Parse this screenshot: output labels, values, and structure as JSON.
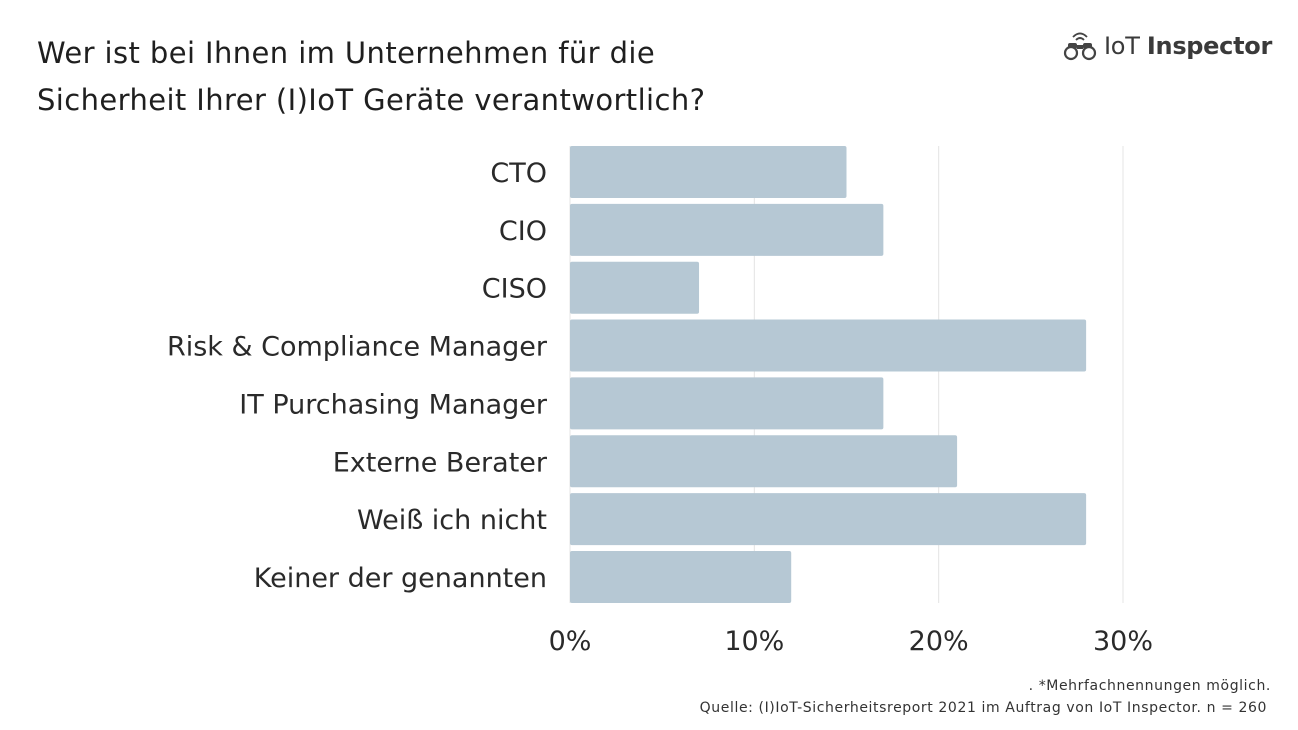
{
  "title_lines": [
    "Wer ist bei Ihnen im Unternehmen für die",
    "Sicherheit Ihrer (I)IoT Geräte verantwortlich?"
  ],
  "logo": {
    "icon": "binoculars-icon",
    "text_light": "IoT",
    "text_bold": "Inspector"
  },
  "colors": {
    "bar": "#b6c8d4",
    "grid": "#e4e4e4",
    "text": "#222222"
  },
  "chart_data": {
    "type": "bar",
    "orientation": "horizontal",
    "title": "Wer ist bei Ihnen im Unternehmen für die Sicherheit Ihrer (I)IoT Geräte verantwortlich?",
    "categories": [
      "CTO",
      "CIO",
      "CISO",
      "Risk & Compliance Manager",
      "IT Purchasing Manager",
      "Externe Berater",
      "Weiß ich nicht",
      "Keiner der genannten"
    ],
    "values": [
      15,
      17,
      7,
      28,
      17,
      21,
      28,
      12
    ],
    "unit": "%",
    "xlim": [
      0,
      39
    ],
    "xticks": [
      0,
      10,
      20,
      30
    ],
    "xtick_labels": [
      "0%",
      "10%",
      "20%",
      "30%"
    ],
    "xlabel": "",
    "ylabel": "",
    "grid": true,
    "legend": "none"
  },
  "footer": {
    "note": ". *Mehrfachnennungen möglich.",
    "source": "Quelle: (I)IoT-Sicherheitsreport 2021 im Auftrag von IoT Inspector. n = 260"
  }
}
